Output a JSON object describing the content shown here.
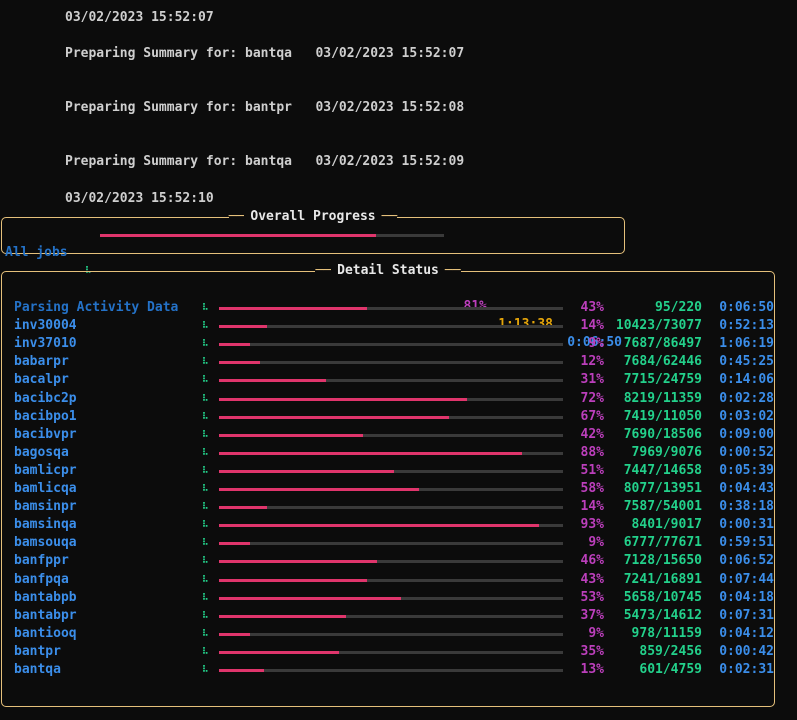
{
  "log": [
    "03/02/2023 15:52:07",
    "Preparing Summary for: bantqa   03/02/2023 15:52:07",
    "Preparing Summary for: bantpr   03/02/2023 15:52:08",
    "Preparing Summary for: bantqa   03/02/2023 15:52:09",
    "03/02/2023 15:52:10"
  ],
  "overall": {
    "title": "Overall Progress",
    "label": "All jobs",
    "spinner": "⠧",
    "percent": "81%",
    "progress": 0.81,
    "elapsed": "1:13:38",
    "remaining": "0:06:50"
  },
  "detail": {
    "title": "Detail Status",
    "rows": [
      {
        "name": "Parsing Activity Data",
        "spinner": "⠧",
        "progress": 0.43,
        "percent": "43%",
        "count": "95/220",
        "time": "0:06:50"
      },
      {
        "name": "inv30004",
        "spinner": "⠧",
        "progress": 0.14,
        "percent": "14%",
        "count": "10423/73077",
        "time": "0:52:13"
      },
      {
        "name": "inv37010",
        "spinner": "⠧",
        "progress": 0.09,
        "percent": "9%",
        "count": "7687/86497",
        "time": "1:06:19"
      },
      {
        "name": "babarpr",
        "spinner": "⠧",
        "progress": 0.12,
        "percent": "12%",
        "count": "7684/62446",
        "time": "0:45:25"
      },
      {
        "name": "bacalpr",
        "spinner": "⠧",
        "progress": 0.31,
        "percent": "31%",
        "count": "7715/24759",
        "time": "0:14:06"
      },
      {
        "name": "bacibc2p",
        "spinner": "⠧",
        "progress": 0.72,
        "percent": "72%",
        "count": "8219/11359",
        "time": "0:02:28"
      },
      {
        "name": "bacibpo1",
        "spinner": "⠧",
        "progress": 0.67,
        "percent": "67%",
        "count": "7419/11050",
        "time": "0:03:02"
      },
      {
        "name": "bacibvpr",
        "spinner": "⠧",
        "progress": 0.42,
        "percent": "42%",
        "count": "7690/18506",
        "time": "0:09:00"
      },
      {
        "name": "bagosqa",
        "spinner": "⠧",
        "progress": 0.88,
        "percent": "88%",
        "count": "7969/9076",
        "time": "0:00:52"
      },
      {
        "name": "bamlicpr",
        "spinner": "⠧",
        "progress": 0.51,
        "percent": "51%",
        "count": "7447/14658",
        "time": "0:05:39"
      },
      {
        "name": "bamlicqa",
        "spinner": "⠧",
        "progress": 0.58,
        "percent": "58%",
        "count": "8077/13951",
        "time": "0:04:43"
      },
      {
        "name": "bamsinpr",
        "spinner": "⠧",
        "progress": 0.14,
        "percent": "14%",
        "count": "7587/54001",
        "time": "0:38:18"
      },
      {
        "name": "bamsinqa",
        "spinner": "⠧",
        "progress": 0.93,
        "percent": "93%",
        "count": "8401/9017",
        "time": "0:00:31"
      },
      {
        "name": "bamsouqa",
        "spinner": "⠧",
        "progress": 0.09,
        "percent": "9%",
        "count": "6777/77671",
        "time": "0:59:51"
      },
      {
        "name": "banfppr",
        "spinner": "⠧",
        "progress": 0.46,
        "percent": "46%",
        "count": "7128/15650",
        "time": "0:06:52"
      },
      {
        "name": "banfpqa",
        "spinner": "⠧",
        "progress": 0.43,
        "percent": "43%",
        "count": "7241/16891",
        "time": "0:07:44"
      },
      {
        "name": "bantabpb",
        "spinner": "⠧",
        "progress": 0.53,
        "percent": "53%",
        "count": "5658/10745",
        "time": "0:04:18"
      },
      {
        "name": "bantabpr",
        "spinner": "⠧",
        "progress": 0.37,
        "percent": "37%",
        "count": "5473/14612",
        "time": "0:07:31"
      },
      {
        "name": "bantiooq",
        "spinner": "⠧",
        "progress": 0.09,
        "percent": "9%",
        "count": "978/11159",
        "time": "0:04:12"
      },
      {
        "name": "bantpr",
        "spinner": "⠧",
        "progress": 0.35,
        "percent": "35%",
        "count": "859/2456",
        "time": "0:00:42"
      },
      {
        "name": "bantqa",
        "spinner": "⠧",
        "progress": 0.13,
        "percent": "13%",
        "count": "601/4759",
        "time": "0:02:31"
      }
    ]
  },
  "colors": {
    "border": "#e5c07b",
    "bar_fill": "#e0356c",
    "bar_track": "#3a3a3a",
    "percent": "#bc3fbc",
    "count": "#23d18b",
    "time": "#3b8eea",
    "elapsed": "#e5a50a"
  }
}
